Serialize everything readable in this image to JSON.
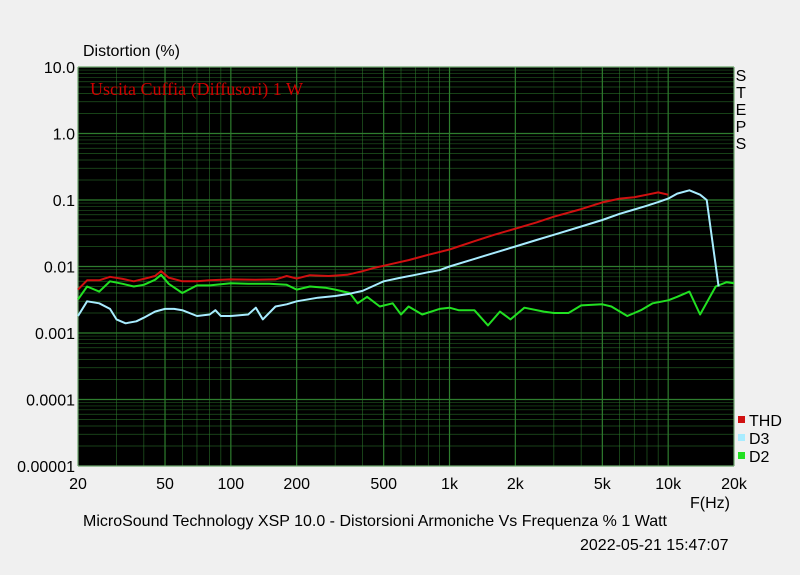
{
  "chart_data": {
    "type": "line",
    "ylabel": "Distortion (%)",
    "xlabel": "F(Hz)",
    "annotation": "Uscita Cuffia (Diffusori) 1 W",
    "side_label": "STEPS",
    "footer": "MicroSound Technology XSP 10.0 - Distorsioni Armoniche Vs Frequenza % 1 Watt",
    "timestamp": "2022-05-21 15:47:07",
    "x_scale": "log",
    "y_scale": "log",
    "xlim": [
      20,
      20000
    ],
    "ylim": [
      1e-05,
      10
    ],
    "grid": true,
    "legend_position": "bottom-right",
    "x_ticks": [
      {
        "v": 20,
        "label": "20"
      },
      {
        "v": 50,
        "label": "50"
      },
      {
        "v": 100,
        "label": "100"
      },
      {
        "v": 200,
        "label": "200"
      },
      {
        "v": 500,
        "label": "500"
      },
      {
        "v": 1000,
        "label": "1k"
      },
      {
        "v": 2000,
        "label": "2k"
      },
      {
        "v": 5000,
        "label": "5k"
      },
      {
        "v": 10000,
        "label": "10k"
      },
      {
        "v": 20000,
        "label": "20k"
      }
    ],
    "y_ticks": [
      {
        "v": 10,
        "label": "10.0"
      },
      {
        "v": 1,
        "label": "1.0"
      },
      {
        "v": 0.1,
        "label": "0.1"
      },
      {
        "v": 0.01,
        "label": "0.01"
      },
      {
        "v": 0.001,
        "label": "0.001"
      },
      {
        "v": 0.0001,
        "label": "0.0001"
      },
      {
        "v": 1e-05,
        "label": "0.00001"
      }
    ],
    "colors": {
      "plot_bg": "#000000",
      "grid": "#2e7d2e",
      "annotation": "#d00000"
    },
    "series": [
      {
        "name": "THD",
        "color": "#d01010",
        "points": [
          [
            20,
            0.0045
          ],
          [
            22,
            0.0062
          ],
          [
            25,
            0.0062
          ],
          [
            28,
            0.007
          ],
          [
            32,
            0.0065
          ],
          [
            36,
            0.006
          ],
          [
            40,
            0.0065
          ],
          [
            45,
            0.0072
          ],
          [
            48,
            0.0085
          ],
          [
            52,
            0.0068
          ],
          [
            60,
            0.006
          ],
          [
            70,
            0.006
          ],
          [
            80,
            0.0062
          ],
          [
            100,
            0.0064
          ],
          [
            130,
            0.0063
          ],
          [
            160,
            0.0064
          ],
          [
            180,
            0.0072
          ],
          [
            200,
            0.0066
          ],
          [
            230,
            0.0074
          ],
          [
            280,
            0.0072
          ],
          [
            340,
            0.0075
          ],
          [
            400,
            0.0085
          ],
          [
            450,
            0.0095
          ],
          [
            550,
            0.011
          ],
          [
            650,
            0.0125
          ],
          [
            800,
            0.015
          ],
          [
            1000,
            0.018
          ],
          [
            1300,
            0.024
          ],
          [
            1600,
            0.03
          ],
          [
            2000,
            0.037
          ],
          [
            2500,
            0.046
          ],
          [
            3000,
            0.056
          ],
          [
            4000,
            0.073
          ],
          [
            5000,
            0.092
          ],
          [
            6000,
            0.105
          ],
          [
            7000,
            0.11
          ],
          [
            8000,
            0.12
          ],
          [
            9000,
            0.13
          ],
          [
            10000,
            0.12
          ]
        ]
      },
      {
        "name": "D3",
        "color": "#a8ecff",
        "points": [
          [
            20,
            0.0018
          ],
          [
            22,
            0.003
          ],
          [
            25,
            0.0028
          ],
          [
            28,
            0.0023
          ],
          [
            30,
            0.0016
          ],
          [
            33,
            0.0014
          ],
          [
            37,
            0.0015
          ],
          [
            40,
            0.0017
          ],
          [
            45,
            0.0021
          ],
          [
            50,
            0.0023
          ],
          [
            55,
            0.0023
          ],
          [
            60,
            0.0022
          ],
          [
            70,
            0.0018
          ],
          [
            80,
            0.0019
          ],
          [
            85,
            0.0022
          ],
          [
            90,
            0.0018
          ],
          [
            100,
            0.0018
          ],
          [
            120,
            0.0019
          ],
          [
            130,
            0.0024
          ],
          [
            140,
            0.0016
          ],
          [
            160,
            0.0025
          ],
          [
            180,
            0.0027
          ],
          [
            200,
            0.003
          ],
          [
            250,
            0.0034
          ],
          [
            300,
            0.0036
          ],
          [
            350,
            0.0039
          ],
          [
            400,
            0.0043
          ],
          [
            500,
            0.006
          ],
          [
            600,
            0.0068
          ],
          [
            700,
            0.0075
          ],
          [
            800,
            0.0082
          ],
          [
            900,
            0.0088
          ],
          [
            1000,
            0.01
          ],
          [
            1300,
            0.013
          ],
          [
            1600,
            0.016
          ],
          [
            2000,
            0.02
          ],
          [
            2500,
            0.025
          ],
          [
            3000,
            0.03
          ],
          [
            4000,
            0.04
          ],
          [
            5000,
            0.05
          ],
          [
            6000,
            0.062
          ],
          [
            7000,
            0.072
          ],
          [
            8000,
            0.082
          ],
          [
            9000,
            0.093
          ],
          [
            10000,
            0.105
          ],
          [
            11000,
            0.125
          ],
          [
            12500,
            0.14
          ],
          [
            14000,
            0.12
          ],
          [
            15000,
            0.1
          ],
          [
            17000,
            0.005
          ]
        ]
      },
      {
        "name": "D2",
        "color": "#22e022",
        "points": [
          [
            20,
            0.0032
          ],
          [
            22,
            0.005
          ],
          [
            25,
            0.0042
          ],
          [
            28,
            0.006
          ],
          [
            32,
            0.0055
          ],
          [
            36,
            0.005
          ],
          [
            40,
            0.0053
          ],
          [
            45,
            0.0063
          ],
          [
            48,
            0.0075
          ],
          [
            52,
            0.0055
          ],
          [
            60,
            0.004
          ],
          [
            70,
            0.0052
          ],
          [
            80,
            0.0052
          ],
          [
            100,
            0.0056
          ],
          [
            120,
            0.0055
          ],
          [
            150,
            0.0055
          ],
          [
            180,
            0.0053
          ],
          [
            200,
            0.0045
          ],
          [
            230,
            0.005
          ],
          [
            270,
            0.0048
          ],
          [
            300,
            0.0045
          ],
          [
            350,
            0.004
          ],
          [
            380,
            0.0028
          ],
          [
            420,
            0.0035
          ],
          [
            480,
            0.0025
          ],
          [
            550,
            0.0028
          ],
          [
            600,
            0.0019
          ],
          [
            650,
            0.0025
          ],
          [
            750,
            0.0019
          ],
          [
            900,
            0.0023
          ],
          [
            1000,
            0.0024
          ],
          [
            1100,
            0.0022
          ],
          [
            1300,
            0.0022
          ],
          [
            1500,
            0.0013
          ],
          [
            1700,
            0.0021
          ],
          [
            1900,
            0.0016
          ],
          [
            2200,
            0.0024
          ],
          [
            2700,
            0.0021
          ],
          [
            3000,
            0.002
          ],
          [
            3500,
            0.002
          ],
          [
            4000,
            0.0026
          ],
          [
            5000,
            0.0027
          ],
          [
            5500,
            0.0025
          ],
          [
            6500,
            0.0018
          ],
          [
            7500,
            0.0022
          ],
          [
            8500,
            0.0028
          ],
          [
            10000,
            0.0031
          ],
          [
            11000,
            0.0035
          ],
          [
            12500,
            0.0042
          ],
          [
            14000,
            0.0019
          ],
          [
            16500,
            0.005
          ],
          [
            18500,
            0.0058
          ],
          [
            20000,
            0.0056
          ]
        ]
      }
    ]
  }
}
